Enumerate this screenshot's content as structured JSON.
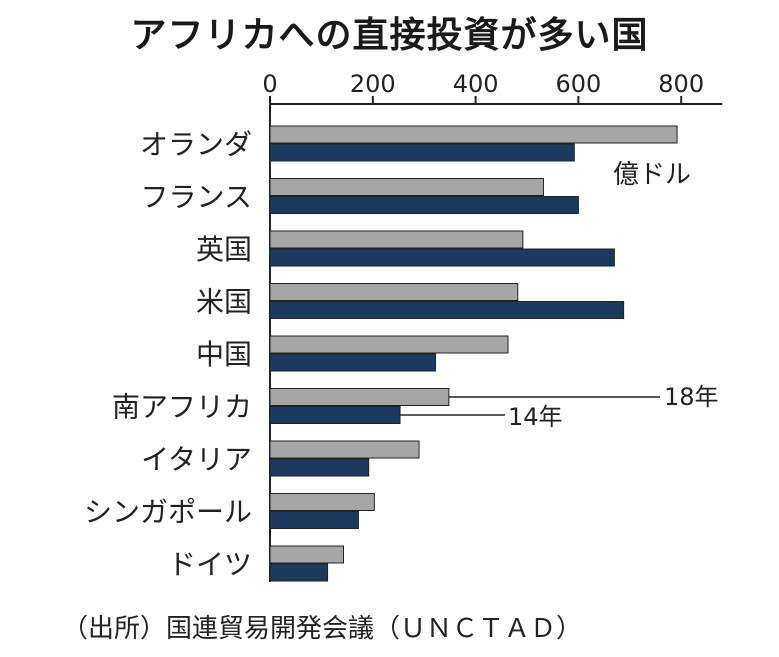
{
  "title": "アフリカへの直接投資が多い国",
  "source": "（出所）国連貿易開発会議（ＵＮＣＴＡＤ）",
  "chart_data": {
    "type": "bar",
    "orientation": "horizontal",
    "categories": [
      "オランダ",
      "フランス",
      "英国",
      "米国",
      "中国",
      "南アフリカ",
      "イタリア",
      "シンガポール",
      "ドイツ"
    ],
    "series": [
      {
        "name": "18年",
        "values": [
          792,
          532,
          492,
          482,
          463,
          348,
          290,
          203,
          143
        ],
        "color": "#a6a6a6"
      },
      {
        "name": "14年",
        "values": [
          592,
          600,
          670,
          688,
          322,
          253,
          192,
          172,
          112
        ],
        "color": "#1b3a5e"
      }
    ],
    "xticks": [
      0,
      200,
      400,
      600,
      800
    ],
    "xlim": [
      0,
      880
    ],
    "unit": "億ドル",
    "grid": false,
    "xaxis_position": "top"
  }
}
